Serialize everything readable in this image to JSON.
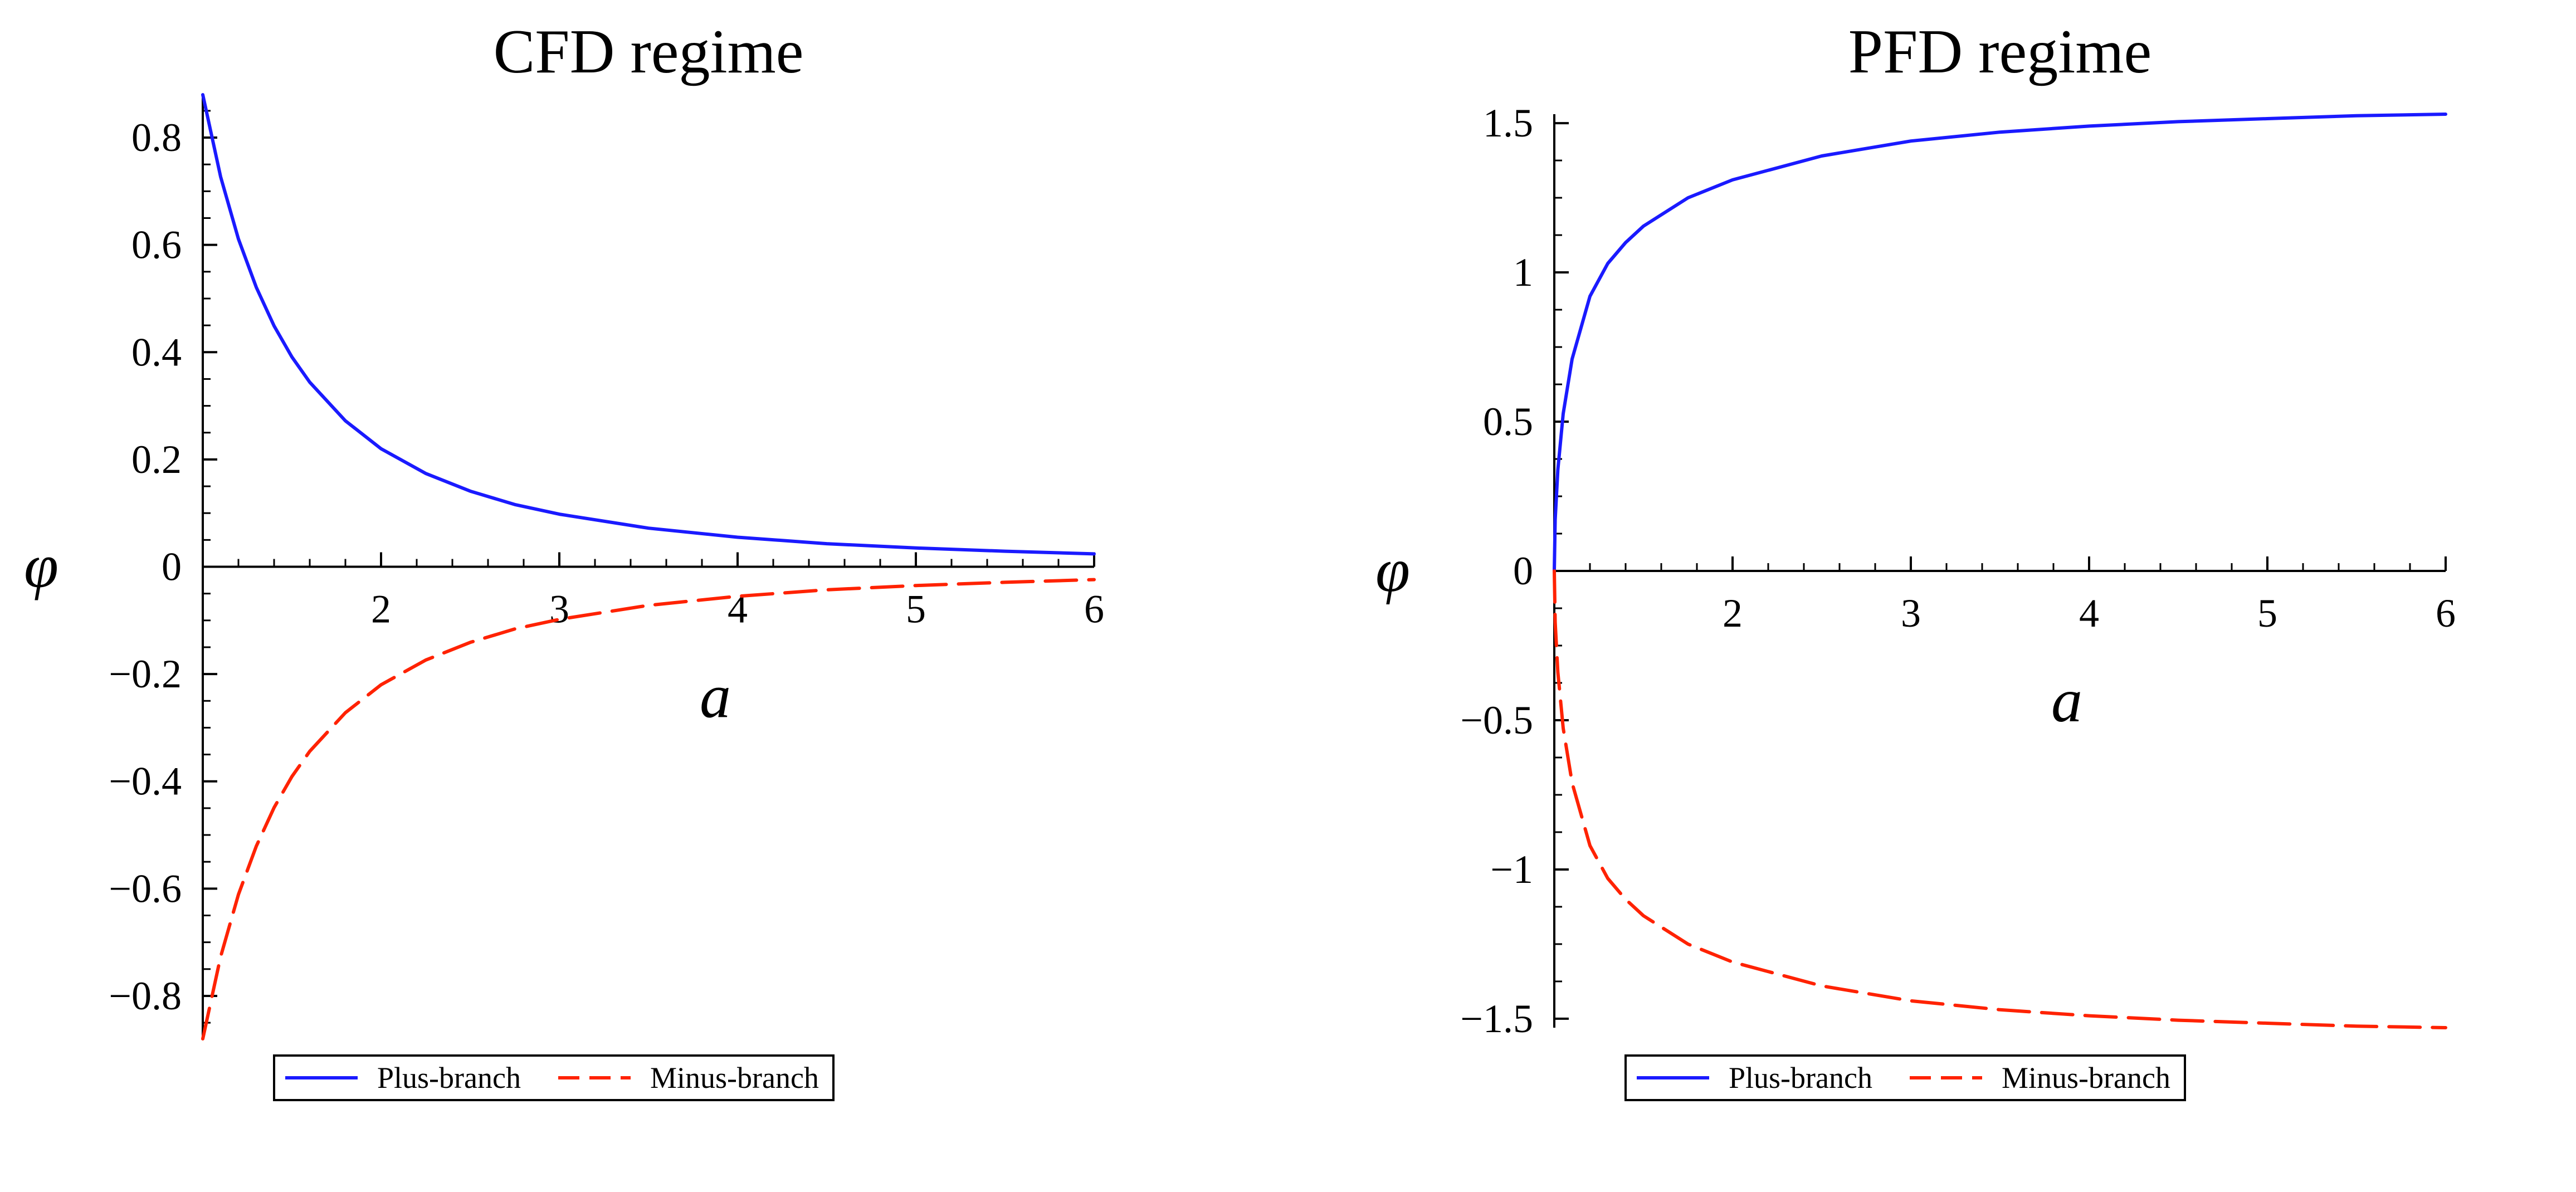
{
  "chart_data": [
    {
      "type": "line",
      "title": "CFD regime",
      "xlabel": "a",
      "ylabel": "φ",
      "xlim": [
        1,
        6
      ],
      "ylim": [
        -0.88,
        0.88
      ],
      "xticks": [
        2,
        3,
        4,
        5,
        6
      ],
      "xtick_labels": [
        "2",
        "3",
        "4",
        "5",
        "6"
      ],
      "yticks": [
        0.8,
        0.6,
        0.4,
        0.2,
        0,
        -0.2,
        -0.4,
        -0.6,
        -0.8
      ],
      "ytick_labels": [
        "0.8",
        "0.6",
        "0.4",
        "0.2",
        "0",
        "−0.2",
        "−0.4",
        "−0.6",
        "−0.8"
      ],
      "grid": false,
      "legend_position": "bottom",
      "series": [
        {
          "name": "Plus-branch",
          "color": "#1a1aff",
          "style": "solid",
          "x": [
            1.0,
            1.1,
            1.2,
            1.3,
            1.4,
            1.5,
            1.6,
            1.8,
            2.0,
            2.25,
            2.5,
            2.75,
            3.0,
            3.5,
            4.0,
            4.5,
            5.0,
            5.5,
            6.0
          ],
          "y": [
            0.88,
            0.727,
            0.611,
            0.521,
            0.449,
            0.391,
            0.344,
            0.272,
            0.22,
            0.174,
            0.141,
            0.116,
            0.098,
            0.072,
            0.055,
            0.043,
            0.035,
            0.029,
            0.024
          ]
        },
        {
          "name": "Minus-branch",
          "color": "#ff2200",
          "style": "dashed",
          "x": [
            1.0,
            1.1,
            1.2,
            1.3,
            1.4,
            1.5,
            1.6,
            1.8,
            2.0,
            2.25,
            2.5,
            2.75,
            3.0,
            3.5,
            4.0,
            4.5,
            5.0,
            5.5,
            6.0
          ],
          "y": [
            -0.88,
            -0.727,
            -0.611,
            -0.521,
            -0.449,
            -0.391,
            -0.344,
            -0.272,
            -0.22,
            -0.174,
            -0.141,
            -0.116,
            -0.098,
            -0.072,
            -0.055,
            -0.043,
            -0.035,
            -0.029,
            -0.024
          ]
        }
      ]
    },
    {
      "type": "line",
      "title": "PFD regime",
      "xlabel": "a",
      "ylabel": "φ",
      "xlim": [
        1,
        6
      ],
      "ylim": [
        -1.53,
        1.53
      ],
      "xticks": [
        2,
        3,
        4,
        5,
        6
      ],
      "xtick_labels": [
        "2",
        "3",
        "4",
        "5",
        "6"
      ],
      "yticks": [
        1.5,
        1,
        0.5,
        0,
        -0.5,
        -1,
        -1.5
      ],
      "ytick_labels": [
        "1.5",
        "1",
        "0.5",
        "0",
        "−0.5",
        "−1",
        "−1.5"
      ],
      "grid": false,
      "legend_position": "bottom",
      "series": [
        {
          "name": "Plus-branch",
          "color": "#1a1aff",
          "style": "solid",
          "x": [
            1.0,
            1.005,
            1.02,
            1.05,
            1.1,
            1.2,
            1.3,
            1.4,
            1.5,
            1.75,
            2.0,
            2.5,
            3.0,
            3.5,
            4.0,
            4.5,
            5.0,
            5.5,
            6.0
          ],
          "y": [
            0.0,
            0.172,
            0.339,
            0.527,
            0.71,
            0.92,
            1.03,
            1.1,
            1.155,
            1.25,
            1.31,
            1.39,
            1.44,
            1.47,
            1.49,
            1.505,
            1.515,
            1.525,
            1.53
          ]
        },
        {
          "name": "Minus-branch",
          "color": "#ff2200",
          "style": "dashed",
          "x": [
            1.0,
            1.005,
            1.02,
            1.05,
            1.1,
            1.2,
            1.3,
            1.4,
            1.5,
            1.75,
            2.0,
            2.5,
            3.0,
            3.5,
            4.0,
            4.5,
            5.0,
            5.5,
            6.0
          ],
          "y": [
            0.0,
            -0.172,
            -0.339,
            -0.527,
            -0.71,
            -0.92,
            -1.03,
            -1.1,
            -1.155,
            -1.25,
            -1.31,
            -1.39,
            -1.44,
            -1.47,
            -1.49,
            -1.505,
            -1.515,
            -1.525,
            -1.53
          ]
        }
      ]
    }
  ]
}
